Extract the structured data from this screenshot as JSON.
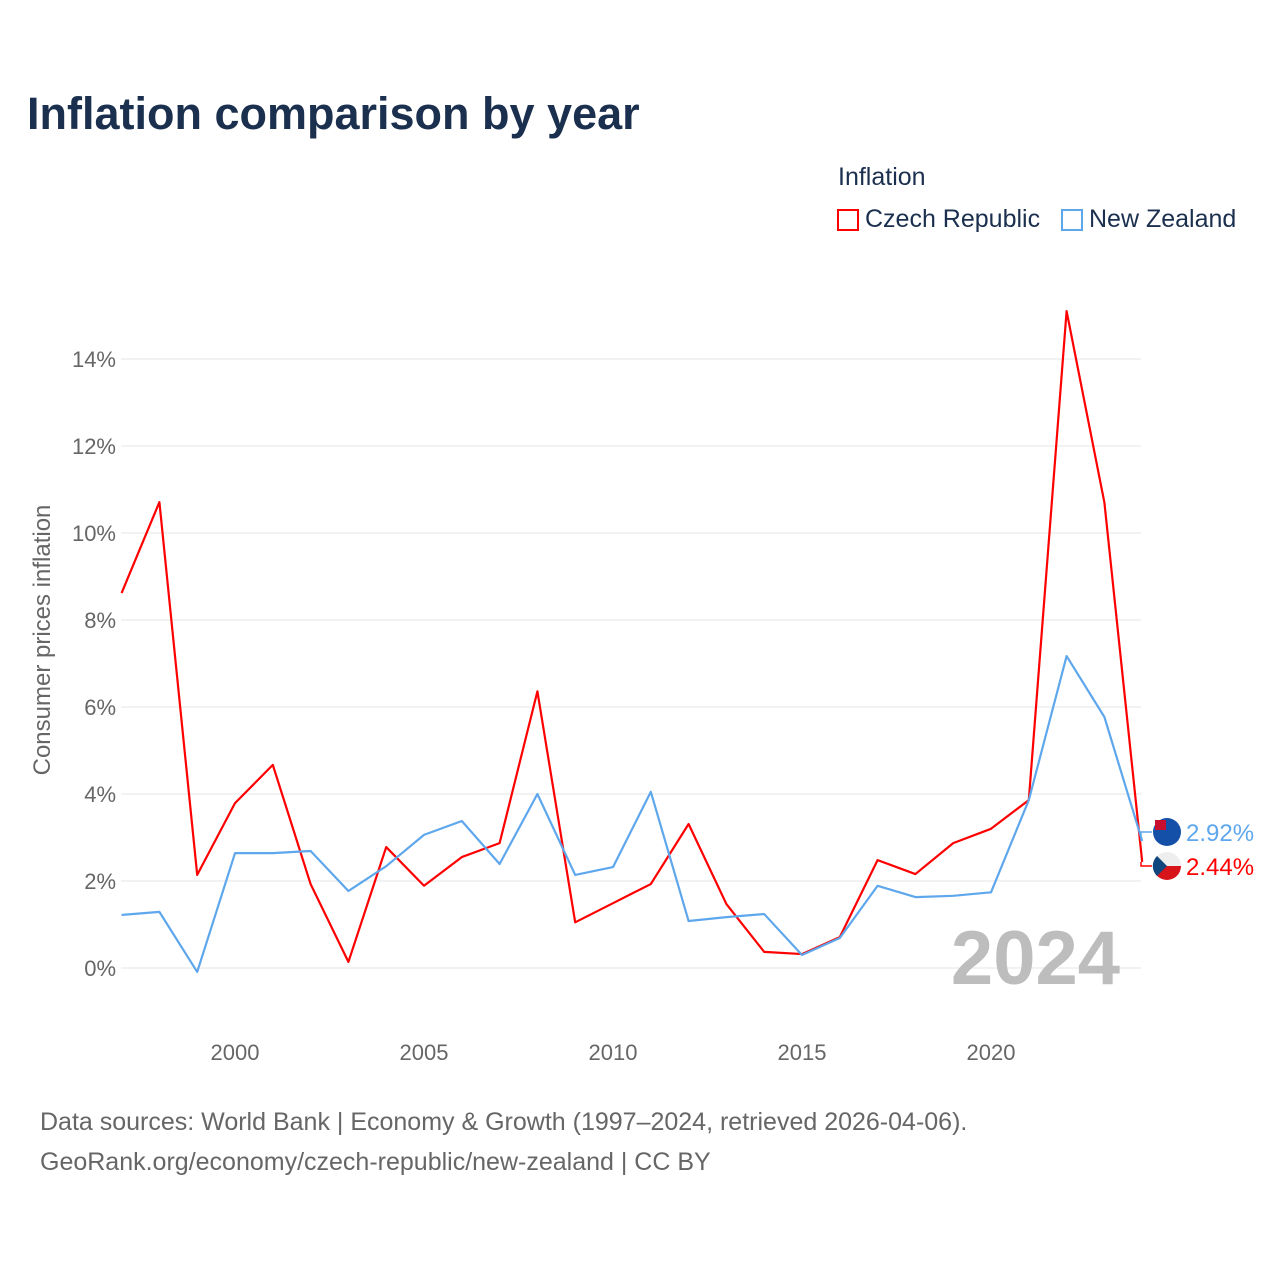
{
  "title": "Inflation comparison by year",
  "legend": {
    "title": "Inflation",
    "items": [
      {
        "label": "Czech Republic",
        "color": "#ff0000"
      },
      {
        "label": "New Zealand",
        "color": "#5ea7ec"
      }
    ]
  },
  "watermark_year": "2024",
  "source_line1": "Data sources: World Bank | Economy & Growth (1997–2024, retrieved 2026-04-06).",
  "source_line2": "GeoRank.org/economy/czech-republic/new-zealand | CC BY",
  "chart_data": {
    "type": "line",
    "title": "Inflation comparison by year",
    "xlabel": "",
    "ylabel": "Consumer prices inflation",
    "x": [
      1997,
      1998,
      1999,
      2000,
      2001,
      2002,
      2003,
      2004,
      2005,
      2006,
      2007,
      2008,
      2009,
      2010,
      2011,
      2012,
      2013,
      2014,
      2015,
      2016,
      2017,
      2018,
      2019,
      2020,
      2021,
      2022,
      2023,
      2024
    ],
    "xlim": [
      1997,
      2024
    ],
    "ylim": [
      -1.2,
      15.5
    ],
    "xticks": [
      2000,
      2005,
      2010,
      2015,
      2020
    ],
    "xtick_labels": [
      "2000",
      "2005",
      "2010",
      "2015",
      "2020"
    ],
    "yticks": [
      0,
      2,
      4,
      6,
      8,
      10,
      12,
      14
    ],
    "ytick_labels": [
      "0%",
      "2%",
      "4%",
      "6%",
      "8%",
      "10%",
      "12%",
      "14%"
    ],
    "grid": true,
    "legend_position": "top-right",
    "series": [
      {
        "name": "Czech Republic",
        "color": "#ff0000",
        "end_label": "2.44%",
        "values": [
          8.62,
          10.71,
          2.14,
          3.79,
          4.67,
          1.93,
          0.14,
          2.78,
          1.89,
          2.55,
          2.87,
          6.36,
          1.05,
          1.49,
          1.93,
          3.31,
          1.47,
          0.37,
          0.32,
          0.71,
          2.48,
          2.16,
          2.87,
          3.2,
          3.86,
          15.1,
          10.7,
          2.44
        ]
      },
      {
        "name": "New Zealand",
        "color": "#5ea7ec",
        "end_label": "2.92%",
        "values": [
          1.22,
          1.29,
          -0.09,
          2.64,
          2.64,
          2.69,
          1.77,
          2.34,
          3.06,
          3.38,
          2.39,
          4.0,
          2.14,
          2.32,
          4.05,
          1.08,
          1.17,
          1.24,
          0.3,
          0.69,
          1.89,
          1.63,
          1.66,
          1.74,
          3.86,
          7.17,
          5.77,
          2.92
        ]
      }
    ]
  }
}
